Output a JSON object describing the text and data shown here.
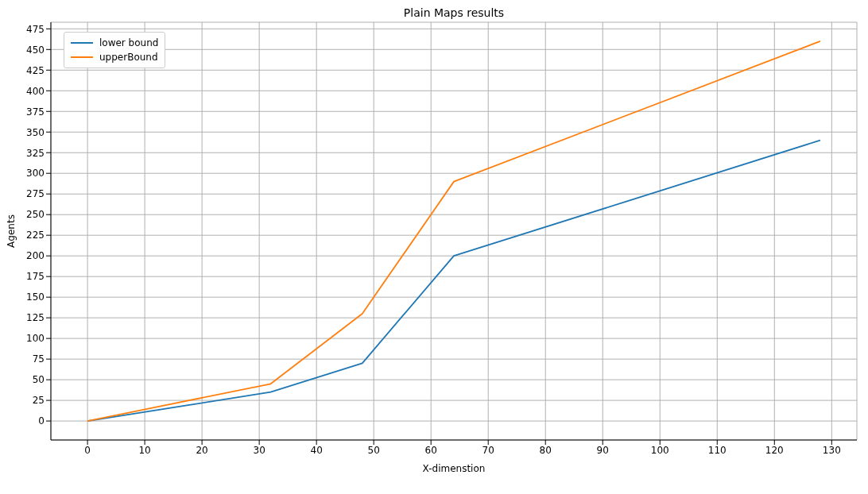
{
  "chart_data": {
    "type": "line",
    "title": "Plain Maps results",
    "xlabel": "X-dimenstion",
    "ylabel": "Agents",
    "x": [
      0,
      32,
      48,
      64,
      128
    ],
    "series": [
      {
        "name": "lower bound",
        "color": "#1f77b4",
        "values": [
          0,
          35,
          70,
          200,
          340
        ]
      },
      {
        "name": "upperBound",
        "color": "#ff7f0e",
        "values": [
          0,
          45,
          130,
          290,
          460
        ]
      }
    ],
    "xlim": [
      -6.4,
      134.4
    ],
    "xticks": [
      0,
      10,
      20,
      30,
      40,
      50,
      60,
      70,
      80,
      90,
      100,
      110,
      120,
      130
    ],
    "ylim": [
      -23,
      483
    ],
    "yticks": [
      0,
      25,
      50,
      75,
      100,
      125,
      150,
      175,
      200,
      225,
      250,
      275,
      300,
      325,
      350,
      375,
      400,
      425,
      450,
      475
    ],
    "grid": true,
    "legend": "top left",
    "marker": "none",
    "line_style": "solid"
  }
}
